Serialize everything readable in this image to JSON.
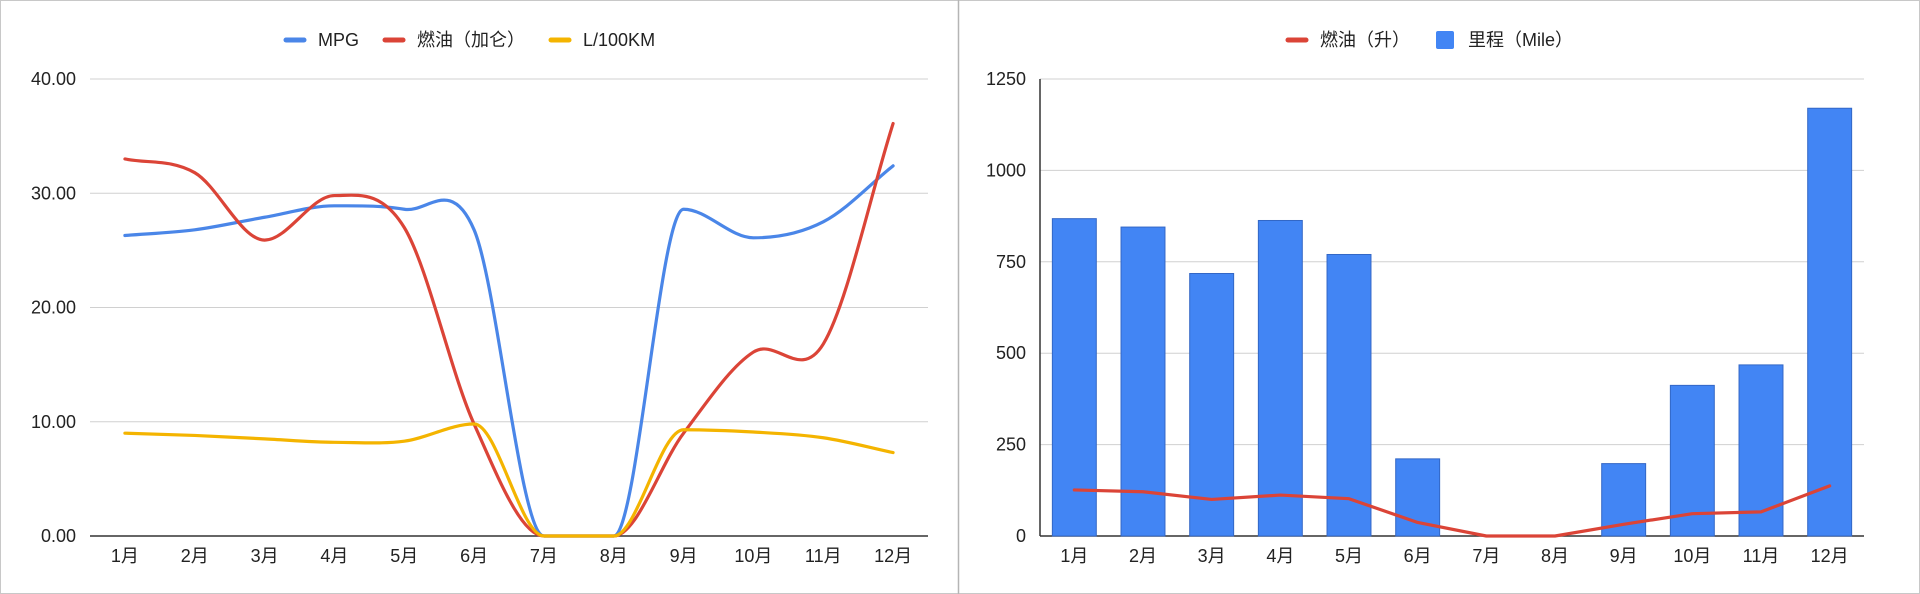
{
  "chart_data": [
    {
      "type": "line",
      "categories": [
        "1月",
        "2月",
        "3月",
        "4月",
        "5月",
        "6月",
        "7月",
        "8月",
        "9月",
        "10月",
        "11月",
        "12月"
      ],
      "series": [
        {
          "name": "MPG",
          "color": "#4a86e8",
          "values": [
            26.3,
            26.8,
            27.9,
            28.9,
            28.6,
            26.8,
            0,
            0,
            28.6,
            26.1,
            27.5,
            32.4
          ]
        },
        {
          "name": "燃油（加仑）",
          "color": "#db4437",
          "values": [
            33.0,
            31.8,
            25.9,
            29.8,
            27.0,
            9.8,
            0,
            0,
            9.0,
            16.1,
            16.8,
            36.1
          ]
        },
        {
          "name": "L/100KM",
          "color": "#f4b400",
          "values": [
            9.0,
            8.8,
            8.5,
            8.2,
            8.3,
            9.8,
            0,
            0,
            9.3,
            9.1,
            8.6,
            7.3
          ]
        }
      ],
      "ylim": [
        0,
        40
      ],
      "yticks": [
        "0.00",
        "10.00",
        "20.00",
        "30.00",
        "40.00"
      ],
      "ytick_values": [
        0,
        10,
        20,
        30,
        40
      ],
      "legend_position": "top",
      "grid": true
    },
    {
      "type": "bar",
      "categories": [
        "1月",
        "2月",
        "3月",
        "4月",
        "5月",
        "6月",
        "7月",
        "8月",
        "9月",
        "10月",
        "11月",
        "12月"
      ],
      "series": [
        {
          "name": "燃油（升）",
          "kind": "line",
          "color": "#db4437",
          "values": [
            126,
            121,
            100,
            112,
            102,
            37,
            0,
            0,
            32,
            61,
            66,
            137
          ]
        },
        {
          "name": "里程（Mile）",
          "kind": "bar",
          "color": "#4285f4",
          "values": [
            868,
            845,
            718,
            863,
            770,
            211,
            0,
            0,
            198,
            412,
            468,
            1170
          ]
        }
      ],
      "ylim": [
        0,
        1250
      ],
      "yticks": [
        "0",
        "250",
        "500",
        "750",
        "1000",
        "1250"
      ],
      "ytick_values": [
        0,
        250,
        500,
        750,
        1000,
        1250
      ],
      "legend_position": "top",
      "grid": true
    }
  ]
}
